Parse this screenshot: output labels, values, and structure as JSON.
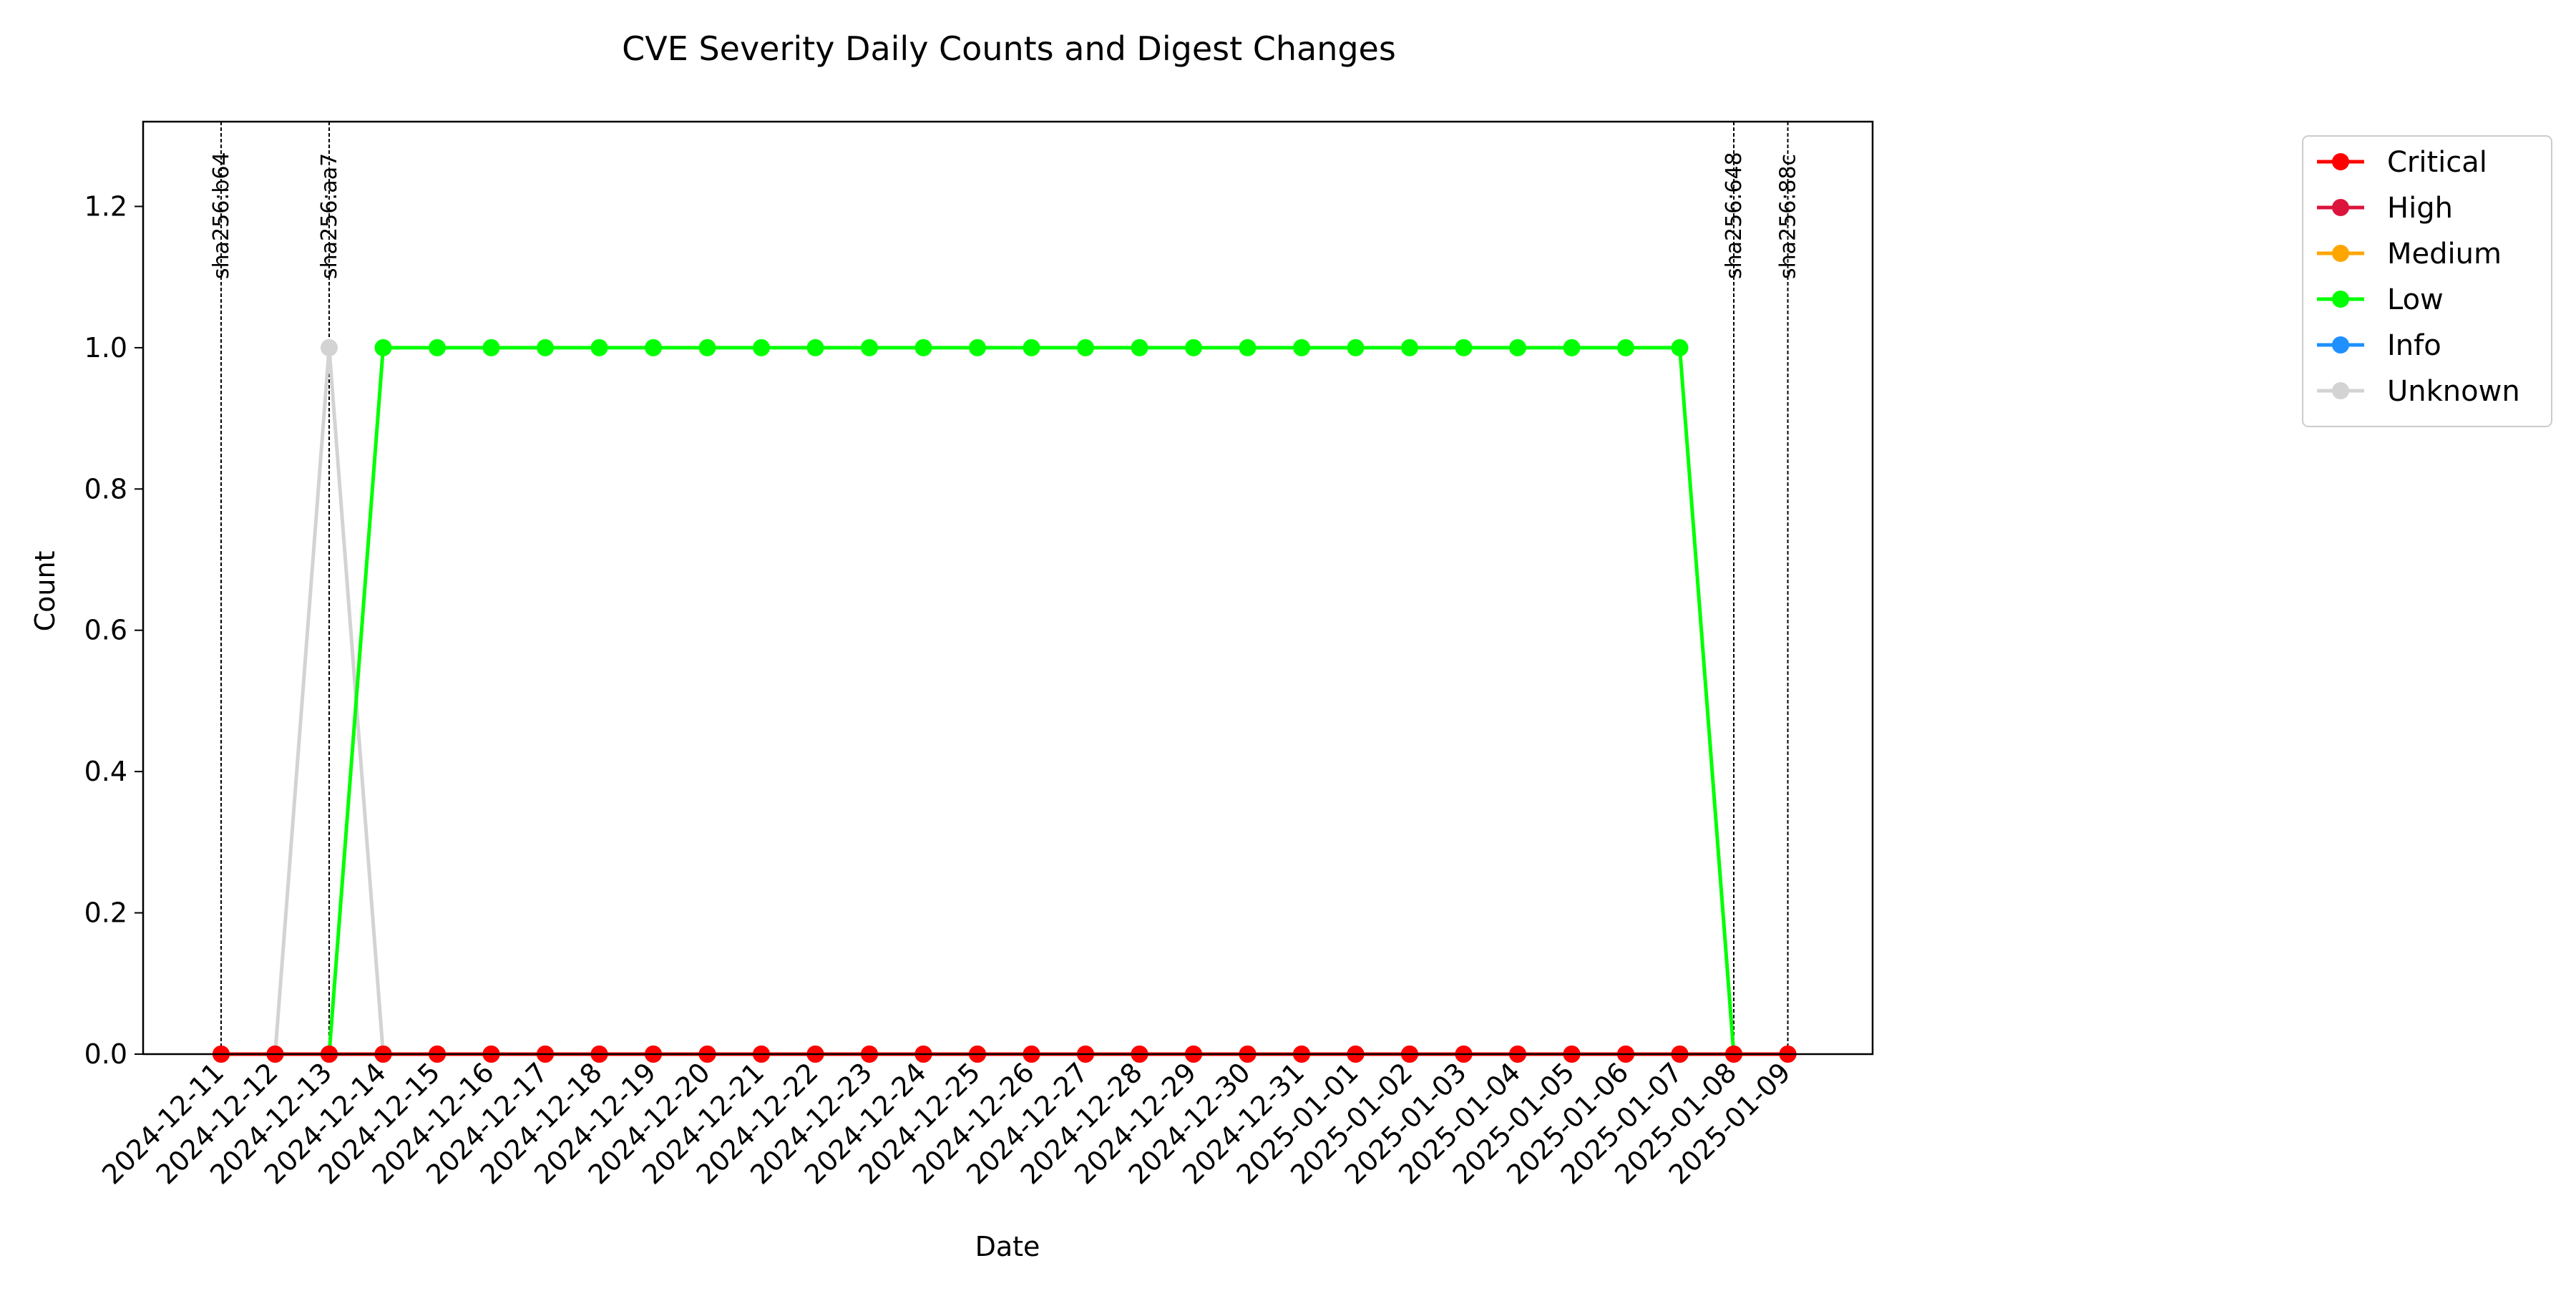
{
  "chart_data": {
    "type": "line",
    "title": "CVE Severity Daily Counts and Digest Changes",
    "xlabel": "Date",
    "ylabel": "Count",
    "ylim": [
      0,
      1.32
    ],
    "yticks": [
      0.0,
      0.2,
      0.4,
      0.6,
      0.8,
      1.0,
      1.2
    ],
    "grid": false,
    "legend_position": "outside right, top",
    "categories": [
      "2024-12-11",
      "2024-12-12",
      "2024-12-13",
      "2024-12-14",
      "2024-12-15",
      "2024-12-16",
      "2024-12-17",
      "2024-12-18",
      "2024-12-19",
      "2024-12-20",
      "2024-12-21",
      "2024-12-22",
      "2024-12-23",
      "2024-12-24",
      "2024-12-25",
      "2024-12-26",
      "2024-12-27",
      "2024-12-28",
      "2024-12-29",
      "2024-12-30",
      "2024-12-31",
      "2025-01-01",
      "2025-01-02",
      "2025-01-03",
      "2025-01-04",
      "2025-01-05",
      "2025-01-06",
      "2025-01-07",
      "2025-01-08",
      "2025-01-09"
    ],
    "series": [
      {
        "name": "Critical",
        "color": "#ff0000",
        "values": [
          0,
          0,
          0,
          0,
          0,
          0,
          0,
          0,
          0,
          0,
          0,
          0,
          0,
          0,
          0,
          0,
          0,
          0,
          0,
          0,
          0,
          0,
          0,
          0,
          0,
          0,
          0,
          0,
          0,
          0
        ]
      },
      {
        "name": "High",
        "color": "#dc143c",
        "values": [
          0,
          0,
          0,
          0,
          0,
          0,
          0,
          0,
          0,
          0,
          0,
          0,
          0,
          0,
          0,
          0,
          0,
          0,
          0,
          0,
          0,
          0,
          0,
          0,
          0,
          0,
          0,
          0,
          0,
          0
        ]
      },
      {
        "name": "Medium",
        "color": "#ffa500",
        "values": [
          0,
          0,
          0,
          0,
          0,
          0,
          0,
          0,
          0,
          0,
          0,
          0,
          0,
          0,
          0,
          0,
          0,
          0,
          0,
          0,
          0,
          0,
          0,
          0,
          0,
          0,
          0,
          0,
          0,
          0
        ]
      },
      {
        "name": "Low",
        "color": "#00ff00",
        "values": [
          null,
          null,
          0,
          1,
          1,
          1,
          1,
          1,
          1,
          1,
          1,
          1,
          1,
          1,
          1,
          1,
          1,
          1,
          1,
          1,
          1,
          1,
          1,
          1,
          1,
          1,
          1,
          1,
          0,
          null
        ]
      },
      {
        "name": "Info",
        "color": "#1e90ff",
        "values": [
          null,
          null,
          0,
          0,
          null,
          null,
          null,
          null,
          null,
          null,
          null,
          null,
          null,
          null,
          null,
          null,
          null,
          null,
          null,
          null,
          null,
          null,
          null,
          null,
          null,
          null,
          null,
          null,
          null,
          null
        ]
      },
      {
        "name": "Unknown",
        "color": "#d3d3d3",
        "values": [
          0,
          0,
          1,
          0,
          0,
          0,
          0,
          0,
          0,
          0,
          0,
          0,
          0,
          0,
          0,
          0,
          0,
          0,
          0,
          0,
          0,
          0,
          0,
          0,
          0,
          0,
          0,
          0,
          0,
          0
        ]
      }
    ],
    "digest_changes": [
      {
        "date": "2024-12-11",
        "label": "sha256:b64"
      },
      {
        "date": "2024-12-13",
        "label": "sha256:aa7"
      },
      {
        "date": "2025-01-08",
        "label": "sha256:648"
      },
      {
        "date": "2025-01-09",
        "label": "sha256:88c"
      }
    ]
  }
}
